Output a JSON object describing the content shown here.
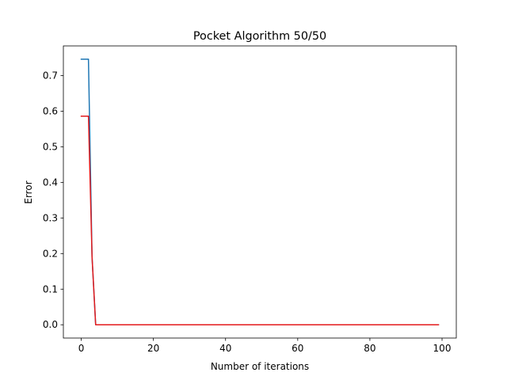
{
  "chart_data": {
    "type": "line",
    "title": "Pocket Algorithm 50/50",
    "xlabel": "Number of iterations",
    "ylabel": "Error",
    "xlim": [
      -4.95,
      103.95
    ],
    "ylim": [
      -0.0373,
      0.7833
    ],
    "xticks": [
      0,
      20,
      40,
      60,
      80,
      100
    ],
    "yticks": [
      0.0,
      0.1,
      0.2,
      0.3,
      0.4,
      0.5,
      0.6,
      0.7
    ],
    "xtick_labels": [
      "0",
      "20",
      "40",
      "60",
      "80",
      "100"
    ],
    "ytick_labels": [
      "0.0",
      "0.1",
      "0.2",
      "0.3",
      "0.4",
      "0.5",
      "0.6",
      "0.7"
    ],
    "grid": false,
    "legend": "none",
    "series": [
      {
        "color": "#1f77b4",
        "x": [
          0,
          1,
          2,
          3,
          4,
          5,
          99
        ],
        "y": [
          0.746,
          0.746,
          0.746,
          0.19,
          0.0,
          0.0,
          0.0
        ]
      },
      {
        "color": "#e31a1c",
        "x": [
          0,
          1,
          2,
          3,
          4,
          5,
          99
        ],
        "y": [
          0.586,
          0.586,
          0.586,
          0.19,
          0.0,
          0.0,
          0.0
        ]
      }
    ]
  }
}
